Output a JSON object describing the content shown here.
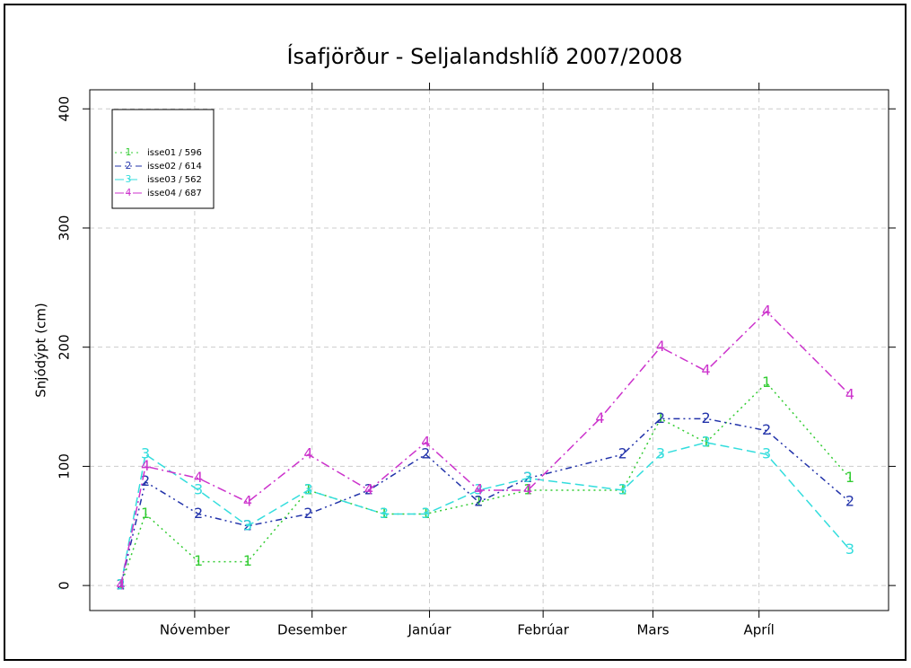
{
  "chart_data": {
    "type": "line",
    "title": "Ísafjörður - Seljalandshlíð 2007/2008",
    "ylabel": "Snjódýpt (cm)",
    "xlim": [
      17.3,
      228.2
    ],
    "xticks": [
      {
        "value": 45,
        "label": "Nóvember"
      },
      {
        "value": 76,
        "label": "Desember"
      },
      {
        "value": 107,
        "label": "Janúar"
      },
      {
        "value": 137,
        "label": "Febrúar"
      },
      {
        "value": 166,
        "label": "Mars"
      },
      {
        "value": 194,
        "label": "Apríl"
      }
    ],
    "ylim": [
      -21,
      416
    ],
    "yticks": [
      0,
      100,
      200,
      300,
      400
    ],
    "grid": true,
    "legend": "upper left",
    "series": [
      {
        "name": "isse01 / 596",
        "symbol": "1",
        "color": "#33cc33",
        "dash": "2,4",
        "x": [
          25.5,
          32,
          46,
          59,
          75,
          95,
          106,
          120,
          133,
          158,
          168,
          180,
          196,
          218
        ],
        "values": [
          0,
          60,
          20,
          20,
          80,
          60,
          60,
          70,
          80,
          80,
          140,
          120,
          170,
          90
        ]
      },
      {
        "name": "isse02 / 614",
        "symbol": "2",
        "color": "#2233aa",
        "dash": "7,4,2,4,2,4",
        "x": [
          25.5,
          32,
          46,
          59,
          75,
          91,
          106,
          120,
          133,
          158,
          168,
          180,
          196,
          218
        ],
        "values": [
          0,
          87,
          60,
          50,
          60,
          80,
          110,
          70,
          90,
          110,
          140,
          140,
          130,
          70
        ]
      },
      {
        "name": "isse03 / 562",
        "symbol": "3",
        "color": "#33dddd",
        "dash": "10,5",
        "x": [
          25.5,
          32,
          46,
          59,
          75,
          95,
          106,
          120,
          133,
          158,
          168,
          180,
          196,
          218
        ],
        "values": [
          0,
          110,
          80,
          50,
          80,
          60,
          60,
          80,
          90,
          80,
          110,
          120,
          110,
          30
        ]
      },
      {
        "name": "isse04 / 687",
        "symbol": "4",
        "color": "#cc33cc",
        "dash": "10,4,2,4",
        "x": [
          25.5,
          32,
          46,
          59,
          75,
          91,
          106,
          120,
          133,
          152,
          168,
          180,
          196,
          218
        ],
        "values": [
          0,
          100,
          90,
          70,
          110,
          80,
          120,
          80,
          80,
          140,
          200,
          180,
          230,
          160
        ]
      }
    ]
  }
}
